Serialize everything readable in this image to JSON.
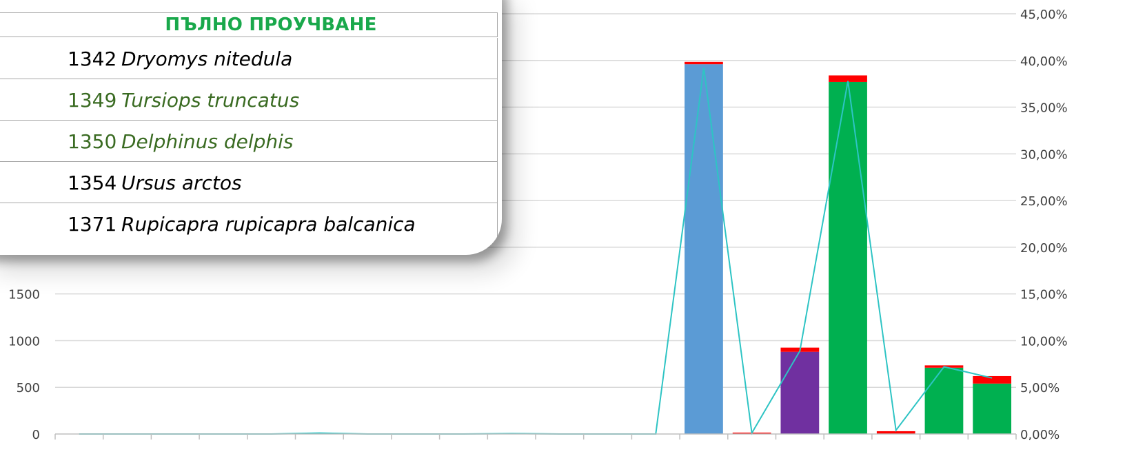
{
  "chart_data": {
    "type": "bar",
    "stacked": true,
    "categories": [
      "",
      "",
      "",
      "",
      "",
      "",
      "",
      "",
      "",
      "",
      "",
      "",
      "",
      "",
      "",
      "",
      "",
      "",
      "",
      ""
    ],
    "series": [
      {
        "values": [
          0,
          0,
          0,
          0,
          0,
          0,
          0,
          0,
          0,
          0,
          0,
          0,
          0,
          3960,
          0,
          880,
          3770,
          0,
          710,
          540
        ]
      },
      {
        "values": [
          0,
          0,
          0,
          0,
          0,
          0,
          0,
          0,
          0,
          0,
          0,
          0,
          0,
          25,
          15,
          45,
          70,
          30,
          25,
          80
        ]
      }
    ],
    "bar_colors": [
      "#ffffff",
      "#ffffff",
      "#ffffff",
      "#ffffff",
      "#ffffff",
      "#ffffff",
      "#ffffff",
      "#ffffff",
      "#ffffff",
      "#ffffff",
      "#ffffff",
      "#ffffff",
      "#ffffff",
      "#5b9bd5",
      "#ffffff",
      "#7030a0",
      "#00b050",
      "#ffffff",
      "#00b050",
      "#00b050"
    ],
    "top_color": "#ff0000",
    "line": {
      "color": "#2ec4c4",
      "values": [
        0,
        0,
        0,
        0,
        0,
        0.1,
        0,
        0,
        0,
        0.05,
        0,
        0,
        0,
        39.2,
        0.1,
        8.9,
        37.8,
        0.4,
        7.2,
        6.0
      ]
    },
    "y_left": {
      "min": 0,
      "max": 4500,
      "ticks_shown": [
        "0",
        "500",
        "1000",
        "1500"
      ]
    },
    "y_right": {
      "min": 0,
      "max": 45,
      "ticks": [
        "0,00%",
        "5,00%",
        "10,00%",
        "15,00%",
        "20,00%",
        "25,00%",
        "30,00%",
        "35,00%",
        "40,00%",
        "45,00%"
      ]
    },
    "grid": true
  },
  "panel": {
    "title": "ПЪЛНО ПРОУЧВАНЕ",
    "rows": [
      {
        "code": "1342",
        "species": "Dryomys nitedula",
        "color": "#000000"
      },
      {
        "code": "1349",
        "species": "Tursiops truncatus",
        "color": "#3a6b22"
      },
      {
        "code": "1350",
        "species": "Delphinus delphis",
        "color": "#3a6b22"
      },
      {
        "code": "1354",
        "species": "Ursus arctos",
        "color": "#000000"
      },
      {
        "code": "1371",
        "species": "Rupicapra rupicapra balcanica",
        "color": "#000000"
      }
    ]
  }
}
